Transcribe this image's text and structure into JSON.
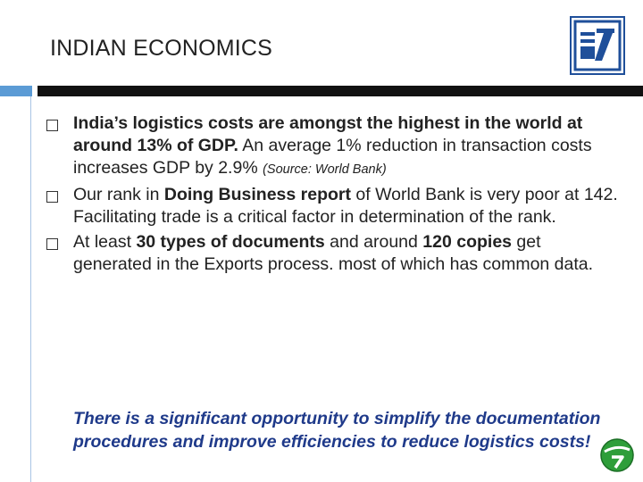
{
  "slide": {
    "title": "INDIAN ECONOMICS"
  },
  "colors": {
    "accent_blue": "#5b9bd5",
    "rule_black": "#111111",
    "logo_blue": "#1f4f9a",
    "callout_blue": "#1f3a8a",
    "badge_green": "#2e9e3a"
  },
  "icons": {
    "logo": "company-logo-icon",
    "badge": "green-circle-logo-icon",
    "bullet": "hollow-square-bullet-icon"
  },
  "bullets": [
    {
      "p1": "India’s logistics costs are amongst the highest in the world at around ",
      "b1": "13% of GDP.",
      "p2": " An average 1% reduction in transaction costs increases GDP by 2.9% ",
      "source": "(Source: World Bank)"
    },
    {
      "p1": "Our rank in ",
      "b1": "Doing Business report",
      "p2": " of World Bank is very poor at 142. Facilitating trade is a critical factor in determination of the rank."
    },
    {
      "p1": "At least ",
      "b1": "30 types of documents",
      "p2": " and around ",
      "b2": "120 copies",
      "p3": " get generated in the Exports process. most of which has common data."
    }
  ],
  "callout": "There is a significant opportunity to simplify the documentation procedures and improve efficiencies to reduce logistics costs!"
}
